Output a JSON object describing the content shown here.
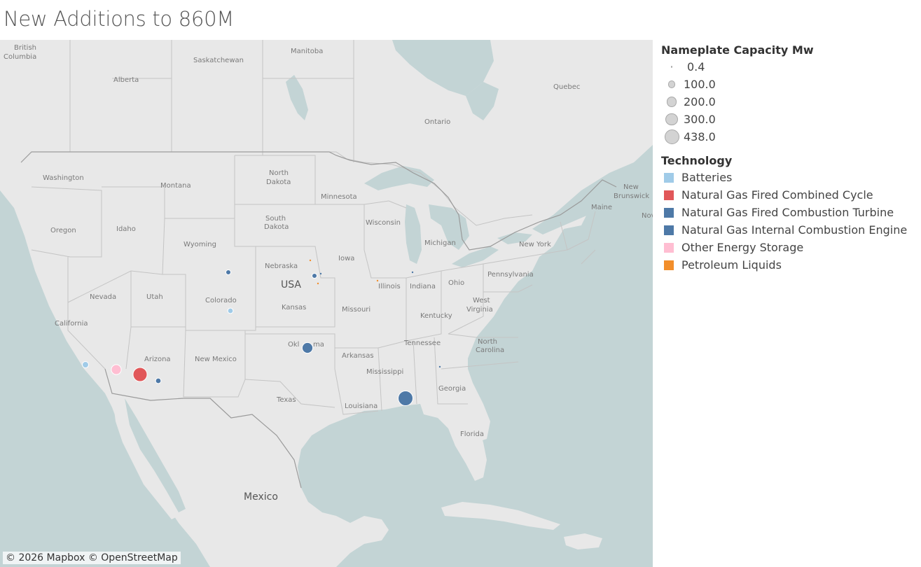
{
  "title": "New Additions to 860M",
  "map": {
    "attribution": "© 2026 Mapbox © OpenStreetMap",
    "labels": {
      "british_columbia": [
        "British",
        "Columbia"
      ],
      "alberta": "Alberta",
      "saskatchewan": "Saskatchewan",
      "manitoba": "Manitoba",
      "ontario": "Ontario",
      "quebec": "Quebec",
      "new_brunswick": [
        "New",
        "Brunswick"
      ],
      "nova_scotia": "Nov",
      "washington": "Washington",
      "oregon": "Oregon",
      "idaho": "Idaho",
      "montana": "Montana",
      "wyoming": "Wyoming",
      "north_dakota": [
        "North",
        "Dakota"
      ],
      "south_dakota": [
        "South",
        "Dakota"
      ],
      "nebraska": "Nebraska",
      "usa": "USA",
      "kansas": "Kansas",
      "minnesota": "Minnesota",
      "wisconsin": "Wisconsin",
      "michigan": "Michigan",
      "iowa": "Iowa",
      "illinois": "Illinois",
      "indiana": "Indiana",
      "ohio": "Ohio",
      "pennsylvania": "Pennsylvania",
      "new_york": "New York",
      "maine": "Maine",
      "west_virginia": [
        "West",
        "Virginia"
      ],
      "kentucky": "Kentucky",
      "tennessee": "Tennessee",
      "north_carolina": [
        "North",
        "Carolina"
      ],
      "missouri": "Missouri",
      "arkansas": "Arkansas",
      "oklahoma_left": "Okl",
      "oklahoma_right": "ma",
      "mississippi": "Mississippi",
      "georgia": "Georgia",
      "louisiana": "Louisiana",
      "texas": "Texas",
      "florida": "Florida",
      "nevada": "Nevada",
      "utah": "Utah",
      "colorado": "Colorado",
      "california": "California",
      "arizona": "Arizona",
      "new_mexico": "New Mexico",
      "mexico": "Mexico"
    },
    "points": [
      {
        "name": "oklahoma",
        "technology": "Natural Gas Fired Combustion Turbine",
        "capacity_mw": 230
      },
      {
        "name": "mississippi-gulf",
        "technology": "Natural Gas Fired Combustion Turbine",
        "capacity_mw": 438
      },
      {
        "name": "arizona-phoenix",
        "technology": "Natural Gas Fired Combined Cycle",
        "capacity_mw": 400
      },
      {
        "name": "arizona-tucson",
        "technology": "Natural Gas Fired Combustion Turbine",
        "capacity_mw": 60
      },
      {
        "name": "california-desert",
        "technology": "Other Energy Storage",
        "capacity_mw": 200
      },
      {
        "name": "california-la",
        "technology": "Batteries",
        "capacity_mw": 80
      },
      {
        "name": "colorado",
        "technology": "Batteries",
        "capacity_mw": 60
      },
      {
        "name": "wyoming-nebraska",
        "technology": "Natural Gas Fired Combustion Turbine",
        "capacity_mw": 50
      },
      {
        "name": "iowa-omaha",
        "technology": "Natural Gas Fired Combustion Turbine",
        "capacity_mw": 50
      },
      {
        "name": "iowa-omaha-2",
        "technology": "Natural Gas Internal Combustion Engine",
        "capacity_mw": 5
      },
      {
        "name": "nebraska-east",
        "technology": "Petroleum Liquids",
        "capacity_mw": 2
      },
      {
        "name": "kansas-east",
        "technology": "Petroleum Liquids",
        "capacity_mw": 2
      },
      {
        "name": "illinois",
        "technology": "Petroleum Liquids",
        "capacity_mw": 2
      },
      {
        "name": "indiana",
        "technology": "Natural Gas Internal Combustion Engine",
        "capacity_mw": 2
      },
      {
        "name": "georgia-alabama",
        "technology": "Natural Gas Internal Combustion Engine",
        "capacity_mw": 2
      }
    ]
  },
  "legend": {
    "size_title": "Nameplate Capacity Mw",
    "sizes": [
      {
        "label": "0.4",
        "value": 0.4
      },
      {
        "label": "100.0",
        "value": 100
      },
      {
        "label": "200.0",
        "value": 200
      },
      {
        "label": "300.0",
        "value": 300
      },
      {
        "label": "438.0",
        "value": 438
      }
    ],
    "tech_title": "Technology",
    "technologies": [
      {
        "name": "Batteries",
        "color": "#a0cbe8"
      },
      {
        "name": "Natural Gas Fired Combined Cycle",
        "color": "#e15759"
      },
      {
        "name": "Natural Gas Fired Combustion Turbine",
        "color": "#4e79a7"
      },
      {
        "name": "Natural Gas Internal Combustion Engine",
        "color": "#4e79a7"
      },
      {
        "name": "Other Energy Storage",
        "color": "#ffbed2"
      },
      {
        "name": "Petroleum Liquids",
        "color": "#f28e2b"
      }
    ]
  }
}
